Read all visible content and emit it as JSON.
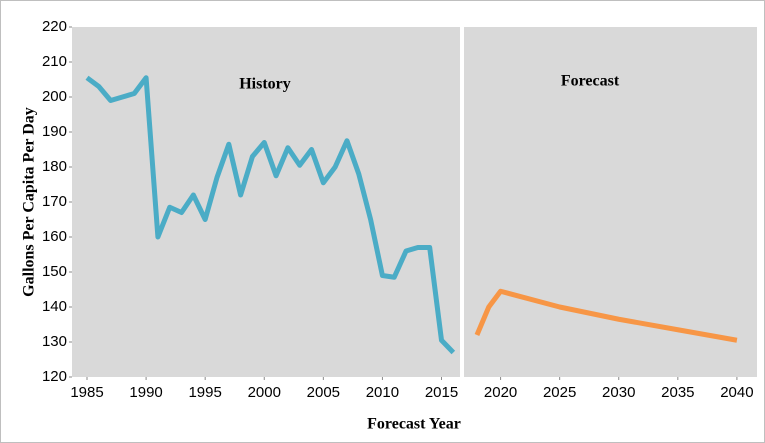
{
  "chart_data": {
    "type": "line",
    "x_label": "Forecast Year",
    "y_label": "Gallons Per Capita Per Day",
    "annotations": [
      "History",
      "Forecast"
    ],
    "series": [
      {
        "color": "#4bacc6",
        "x": [
          1985,
          1986,
          1987,
          1988,
          1989,
          1990,
          1991,
          1992,
          1993,
          1994,
          1995,
          1996,
          1997,
          1998,
          1999,
          2000,
          2001,
          2002,
          2003,
          2004,
          2005,
          2006,
          2007,
          2008,
          2009,
          2010,
          2011,
          2012,
          2013,
          2014,
          2015,
          2016
        ],
        "values": [
          205.5,
          203,
          199,
          200,
          201,
          205.5,
          160,
          168.5,
          167,
          172,
          165,
          177,
          186.5,
          172,
          183,
          187,
          177.5,
          185.5,
          180.5,
          185,
          175.5,
          180,
          187.5,
          178,
          165,
          149,
          148.5,
          156,
          157,
          157,
          130.5,
          127
        ]
      },
      {
        "color": "#f79646",
        "x": [
          2018,
          2019,
          2020,
          2025,
          2030,
          2035,
          2040
        ],
        "values": [
          132,
          140,
          144.5,
          140,
          136.5,
          133.5,
          130.5
        ]
      }
    ],
    "xlim": [
      1983.73,
      2041.7
    ],
    "ylim": [
      120,
      220
    ],
    "xticks": [
      1985,
      1990,
      1995,
      2000,
      2005,
      2010,
      2015,
      2020,
      2025,
      2030,
      2035,
      2040
    ],
    "yticks": [
      120,
      130,
      140,
      150,
      160,
      170,
      180,
      190,
      200,
      210,
      220
    ]
  }
}
